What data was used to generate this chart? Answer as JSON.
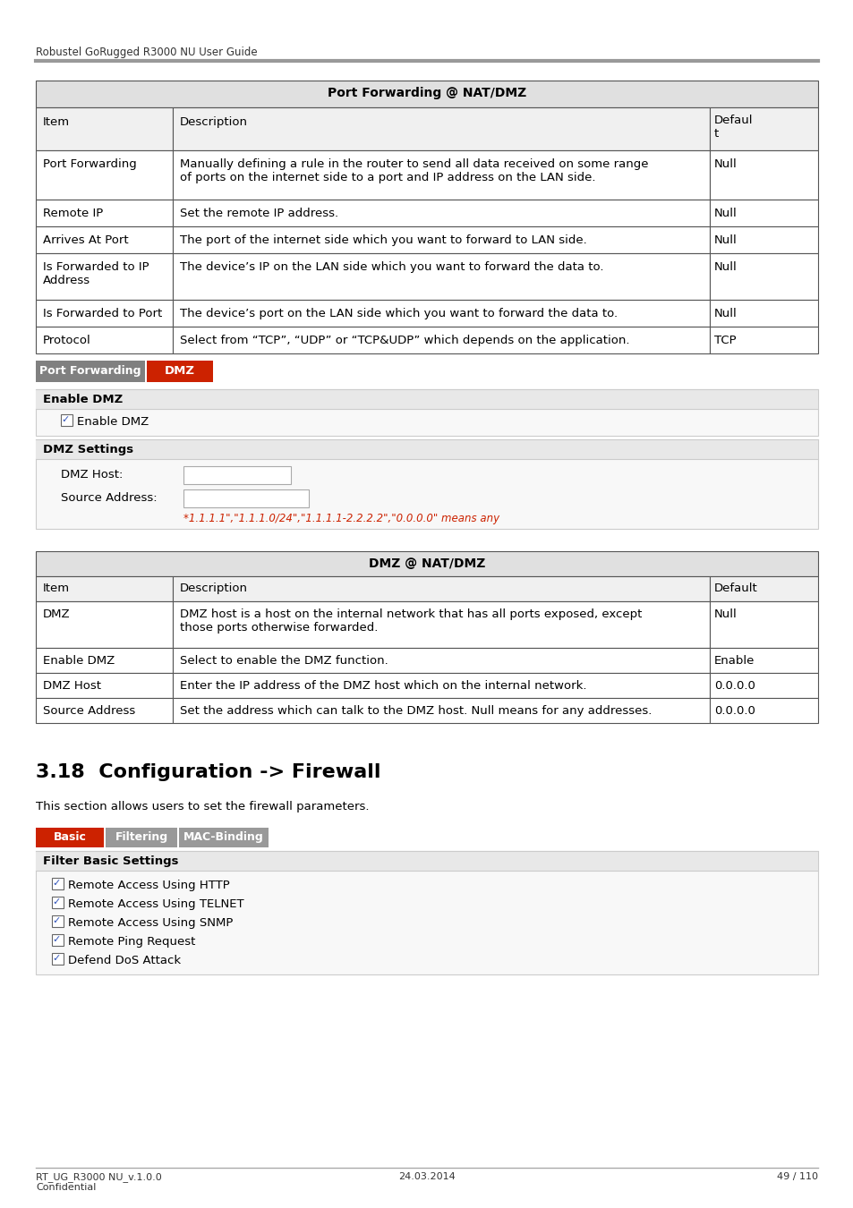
{
  "header_text": "Robustel GoRugged R3000 NU User Guide",
  "table1_title": "Port Forwarding @ NAT/DMZ",
  "tab1_label": "Port Forwarding",
  "tab2_label": "DMZ",
  "section1_title": "Enable DMZ",
  "checkbox1_label": "Enable DMZ",
  "section2_title": "DMZ Settings",
  "field1_label": "DMZ Host:",
  "field2_label": "Source Address:",
  "hint_text": "*1.1.1.1\",\"1.1.1.0/24\",\"1.1.1.1-2.2.2.2\",\"0.0.0.0\" means any",
  "table1_rows": [
    [
      "Port Forwarding",
      "Manually defining a rule in the router to send all data received on some range\nof ports on the internet side to a port and IP address on the LAN side.",
      "Null"
    ],
    [
      "Remote IP",
      "Set the remote IP address.",
      "Null"
    ],
    [
      "Arrives At Port",
      "The port of the internet side which you want to forward to LAN side.",
      "Null"
    ],
    [
      "Is Forwarded to IP\nAddress",
      "The device’s IP on the LAN side which you want to forward the data to.",
      "Null"
    ],
    [
      "Is Forwarded to Port",
      "The device’s port on the LAN side which you want to forward the data to.",
      "Null"
    ],
    [
      "Protocol",
      "Select from “TCP”, “UDP” or “TCP&UDP” which depends on the application.",
      "TCP"
    ]
  ],
  "table2_title": "DMZ @ NAT/DMZ",
  "table2_rows": [
    [
      "DMZ",
      "DMZ host is a host on the internal network that has all ports exposed, except\nthose ports otherwise forwarded.",
      "Null"
    ],
    [
      "Enable DMZ",
      "Select to enable the DMZ function.",
      "Enable"
    ],
    [
      "DMZ Host",
      "Enter the IP address of the DMZ host which on the internal network.",
      "0.0.0.0"
    ],
    [
      "Source Address",
      "Set the address which can talk to the DMZ host. Null means for any addresses.",
      "0.0.0.0"
    ]
  ],
  "section_heading": "3.18  Configuration -> Firewall",
  "section_desc": "This section allows users to set the firewall parameters.",
  "tab_basic": "Basic",
  "tab_filtering": "Filtering",
  "tab_macbinding": "MAC-Binding",
  "filter_title": "Filter Basic Settings",
  "checkboxes": [
    "Remote Access Using HTTP",
    "Remote Access Using TELNET",
    "Remote Access Using SNMP",
    "Remote Ping Request",
    "Defend DoS Attack"
  ],
  "footer_left1": "RT_UG_R3000 NU_v.1.0.0",
  "footer_left2": "Confidential",
  "footer_center": "24.03.2014",
  "footer_right": "49 / 110"
}
